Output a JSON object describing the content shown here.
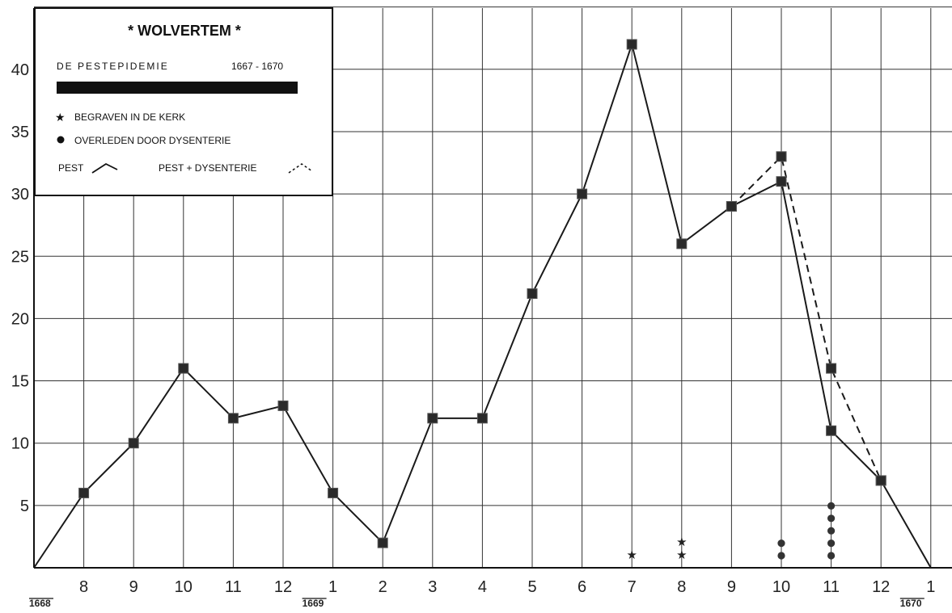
{
  "chart_data": {
    "type": "line",
    "title": "* WOLVERTEM *",
    "legend": {
      "subtitle": "DE PESTEPIDEMIE",
      "period": "1667 - 1670",
      "star_label": "BEGRAVEN IN DE KERK",
      "dot_label": "OVERLEDEN DOOR DYSENTERIE",
      "solid_label": "PEST",
      "dashed_label": "PEST + DYSENTERIE",
      "placement": "top-left"
    },
    "x_tick_labels": [
      "8",
      "9",
      "10",
      "11",
      "12",
      "1",
      "2",
      "3",
      "4",
      "5",
      "6",
      "7",
      "8",
      "9",
      "10",
      "11",
      "12",
      "1"
    ],
    "x_tick_index": [
      1,
      2,
      3,
      4,
      5,
      6,
      7,
      8,
      9,
      10,
      11,
      12,
      13,
      14,
      15,
      16,
      17,
      18
    ],
    "year_labels": [
      {
        "label": "1668",
        "index": 0
      },
      {
        "label": "1669",
        "index": 6
      },
      {
        "label": "1670",
        "index": 18
      }
    ],
    "y_ticks": [
      5,
      10,
      15,
      20,
      25,
      30,
      35,
      40
    ],
    "y_tick_labels": [
      "5",
      "10",
      "15",
      "20",
      "25",
      "30",
      "35",
      "40"
    ],
    "ylim": [
      0,
      45
    ],
    "xlim": [
      0,
      18.5
    ],
    "grid": true,
    "series": [
      {
        "name": "PEST",
        "style": "solid",
        "x": [
          0,
          1,
          2,
          3,
          4,
          5,
          6,
          7,
          8,
          9,
          10,
          11,
          12,
          13,
          14,
          15,
          16,
          17,
          18
        ],
        "y": [
          0,
          6,
          10,
          16,
          12,
          13,
          6,
          2,
          12,
          12,
          22,
          30,
          42,
          26,
          29,
          31,
          11,
          7,
          0
        ]
      },
      {
        "name": "PEST + DYSENTERIE",
        "style": "dashed",
        "x": [
          14,
          15,
          16,
          17
        ],
        "y": [
          29,
          33,
          16,
          7
        ]
      }
    ],
    "stars": [
      {
        "x": 12,
        "count": 1
      },
      {
        "x": 13,
        "count": 2
      }
    ],
    "dysentery_dots": [
      {
        "x": 15,
        "count": 2
      },
      {
        "x": 16,
        "count": 5
      }
    ],
    "colors": {
      "line": "#1a1a1a",
      "grid": "#333333",
      "background": "#ffffff"
    }
  }
}
